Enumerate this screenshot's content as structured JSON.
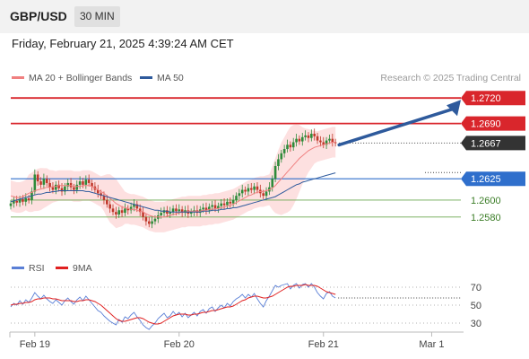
{
  "header": {
    "symbol": "GBP/USD",
    "timeframe": "30 MIN"
  },
  "datetime": "Friday, February 21, 2025 4:39:24 AM CET",
  "legend": [
    {
      "label": "MA 20 + Bollinger Bands",
      "color": "#f08080"
    },
    {
      "label": "MA 50",
      "color": "#2e5a9c"
    }
  ],
  "copyright": "Research © 2025 Trading Central",
  "colors": {
    "resistance": "#d9262c",
    "support": "#6aa84f",
    "pivot": "#2f6fcc",
    "current": "#333333",
    "bull": "#2e8b3a",
    "bear": "#c0392b",
    "band_fill": "#fde0e0",
    "arrow": "#2e5a9c"
  },
  "rsi_legend": [
    {
      "label": "RSI",
      "color": "#5a7fd6"
    },
    {
      "label": "9MA",
      "color": "#e02020"
    }
  ],
  "chart_data": [
    {
      "type": "candlestick",
      "y_range": [
        1.2545,
        1.2735
      ],
      "x_range": [
        0,
        150
      ],
      "x_ticks": [
        {
          "x": 8,
          "label": "Feb 19"
        },
        {
          "x": 56,
          "label": "Feb 20"
        },
        {
          "x": 104,
          "label": "Feb 21"
        },
        {
          "x": 140,
          "label": "Mar 1"
        }
      ],
      "levels": [
        {
          "value": 1.272,
          "label": "1.2720",
          "kind": "resistance"
        },
        {
          "value": 1.269,
          "label": "1.2690",
          "kind": "resistance"
        },
        {
          "value": 1.2667,
          "label": "1.2667",
          "kind": "current"
        },
        {
          "value": 1.2625,
          "label": "1.2625",
          "kind": "pivot"
        },
        {
          "value": 1.26,
          "label": "1.2600",
          "kind": "support"
        },
        {
          "value": 1.258,
          "label": "1.2580",
          "kind": "support"
        }
      ],
      "close": [
        1.2596,
        1.2599,
        1.2597,
        1.2601,
        1.2598,
        1.2602,
        1.26,
        1.261,
        1.263,
        1.2622,
        1.2618,
        1.2625,
        1.262,
        1.2615,
        1.2612,
        1.2618,
        1.2614,
        1.261,
        1.2616,
        1.262,
        1.2615,
        1.2612,
        1.2618,
        1.2622,
        1.2618,
        1.2624,
        1.262,
        1.2616,
        1.2612,
        1.2608,
        1.2605,
        1.26,
        1.2595,
        1.259,
        1.2586,
        1.2583,
        1.2588,
        1.2585,
        1.259,
        1.2588,
        1.2592,
        1.2595,
        1.259,
        1.2586,
        1.258,
        1.2575,
        1.2572,
        1.2575,
        1.2578,
        1.2582,
        1.2585,
        1.2588,
        1.2584,
        1.2586,
        1.259,
        1.2587,
        1.2589,
        1.2585,
        1.2588,
        1.2584,
        1.2586,
        1.2588,
        1.2585,
        1.2589,
        1.2591,
        1.2588,
        1.2592,
        1.2594,
        1.259,
        1.2593,
        1.2596,
        1.2594,
        1.2598,
        1.2596,
        1.26,
        1.2605,
        1.2608,
        1.2612,
        1.261,
        1.2614,
        1.2612,
        1.2616,
        1.2612,
        1.2608,
        1.2605,
        1.261,
        1.2615,
        1.2625,
        1.264,
        1.2648,
        1.2655,
        1.266,
        1.2665,
        1.2662,
        1.2668,
        1.2672,
        1.2669,
        1.2674,
        1.2676,
        1.2673,
        1.2678,
        1.2675,
        1.267,
        1.2668,
        1.2665,
        1.267,
        1.2672,
        1.2668,
        1.2667
      ],
      "ma20": [
        1.2605,
        1.2604,
        1.2603,
        1.2603,
        1.2604,
        1.2606,
        1.2608,
        1.2609,
        1.2611,
        1.2612,
        1.2613,
        1.2614,
        1.2615,
        1.2615,
        1.2616,
        1.2616,
        1.2617,
        1.2617,
        1.2617,
        1.2617,
        1.2617,
        1.2616,
        1.2616,
        1.2616,
        1.2617,
        1.2617,
        1.2617,
        1.2616,
        1.2614,
        1.2612,
        1.261,
        1.2608,
        1.2605,
        1.2602,
        1.2599,
        1.2596,
        1.2594,
        1.2592,
        1.2591,
        1.259,
        1.2589,
        1.2589,
        1.2588,
        1.2587,
        1.2586,
        1.2584,
        1.2582,
        1.2581,
        1.258,
        1.258,
        1.258,
        1.258,
        1.2581,
        1.2582,
        1.2583,
        1.2584,
        1.2585,
        1.2586,
        1.2586,
        1.2587,
        1.2587,
        1.2587,
        1.2587,
        1.2587,
        1.2588,
        1.2588,
        1.2589,
        1.2589,
        1.259,
        1.259,
        1.2591,
        1.2592,
        1.2593,
        1.2594,
        1.2595,
        1.2597,
        1.2599,
        1.2601,
        1.2603,
        1.2605,
        1.2606,
        1.2608,
        1.2609,
        1.261,
        1.261,
        1.2611,
        1.2612,
        1.2614,
        1.2617,
        1.2621,
        1.2625,
        1.2629,
        1.2633,
        1.2637,
        1.2641,
        1.2645,
        1.2649,
        1.2652,
        1.2655,
        1.2658,
        1.266,
        1.2662,
        1.2663,
        1.2664,
        1.2665,
        1.2666,
        1.2667,
        1.2668,
        1.2668
      ],
      "ma50": [
        1.2598,
        1.2599,
        1.26,
        1.2601,
        1.2602,
        1.2603,
        1.2604,
        1.2605,
        1.2606,
        1.2607,
        1.2607,
        1.2608,
        1.2609,
        1.2609,
        1.261,
        1.261,
        1.2611,
        1.2611,
        1.2611,
        1.2611,
        1.2611,
        1.2611,
        1.2611,
        1.2611,
        1.2611,
        1.261,
        1.261,
        1.2609,
        1.2608,
        1.2607,
        1.2606,
        1.2605,
        1.2604,
        1.2603,
        1.2602,
        1.2601,
        1.26,
        1.2599,
        1.2598,
        1.2597,
        1.2596,
        1.2595,
        1.2594,
        1.2593,
        1.2592,
        1.2591,
        1.259,
        1.2589,
        1.2588,
        1.2588,
        1.2587,
        1.2587,
        1.2587,
        1.2586,
        1.2586,
        1.2586,
        1.2586,
        1.2586,
        1.2586,
        1.2586,
        1.2586,
        1.2586,
        1.2586,
        1.2586,
        1.2587,
        1.2587,
        1.2587,
        1.2588,
        1.2588,
        1.2588,
        1.2589,
        1.2589,
        1.259,
        1.259,
        1.2591,
        1.2591,
        1.2592,
        1.2593,
        1.2594,
        1.2595,
        1.2596,
        1.2597,
        1.2598,
        1.2599,
        1.26,
        1.2601,
        1.2602,
        1.2603,
        1.2604,
        1.2606,
        1.2608,
        1.261,
        1.2612,
        1.2614,
        1.2616,
        1.2618,
        1.2619,
        1.2621,
        1.2622,
        1.2623,
        1.2624,
        1.2625,
        1.2626,
        1.2627,
        1.2628,
        1.2629,
        1.263,
        1.2631,
        1.2632
      ]
    },
    {
      "type": "line",
      "y_range": [
        22,
        78
      ],
      "y_ticks": [
        70,
        50,
        30
      ],
      "rsi": [
        48,
        52,
        50,
        55,
        51,
        56,
        53,
        58,
        64,
        60,
        57,
        61,
        57,
        54,
        52,
        56,
        53,
        50,
        55,
        58,
        54,
        51,
        56,
        59,
        55,
        60,
        56,
        52,
        48,
        44,
        42,
        38,
        35,
        32,
        30,
        28,
        34,
        31,
        37,
        35,
        39,
        42,
        37,
        33,
        28,
        25,
        23,
        27,
        30,
        35,
        38,
        41,
        36,
        38,
        43,
        39,
        42,
        37,
        41,
        36,
        39,
        42,
        38,
        43,
        45,
        41,
        46,
        48,
        43,
        47,
        50,
        47,
        52,
        49,
        54,
        57,
        59,
        62,
        58,
        62,
        59,
        63,
        57,
        52,
        48,
        55,
        60,
        66,
        72,
        70,
        72,
        73,
        74,
        68,
        72,
        74,
        69,
        73,
        74,
        70,
        74,
        70,
        64,
        60,
        57,
        63,
        65,
        60,
        58
      ],
      "ma9": [
        50,
        51,
        51,
        52,
        52,
        53,
        53,
        54,
        56,
        57,
        57,
        58,
        58,
        58,
        57,
        57,
        56,
        55,
        55,
        55,
        55,
        54,
        54,
        55,
        55,
        56,
        56,
        55,
        54,
        52,
        50,
        47,
        44,
        41,
        38,
        35,
        33,
        32,
        32,
        33,
        34,
        35,
        36,
        36,
        35,
        33,
        31,
        30,
        29,
        29,
        30,
        32,
        34,
        36,
        38,
        39,
        40,
        40,
        40,
        39,
        39,
        40,
        40,
        41,
        42,
        42,
        43,
        44,
        44,
        45,
        46,
        47,
        48,
        48,
        49,
        51,
        53,
        55,
        56,
        58,
        59,
        60,
        60,
        59,
        58,
        58,
        59,
        60,
        62,
        64,
        66,
        68,
        70,
        71,
        71,
        72,
        72,
        72,
        73,
        72,
        72,
        72,
        71,
        69,
        67,
        65,
        64,
        63,
        62
      ]
    }
  ]
}
